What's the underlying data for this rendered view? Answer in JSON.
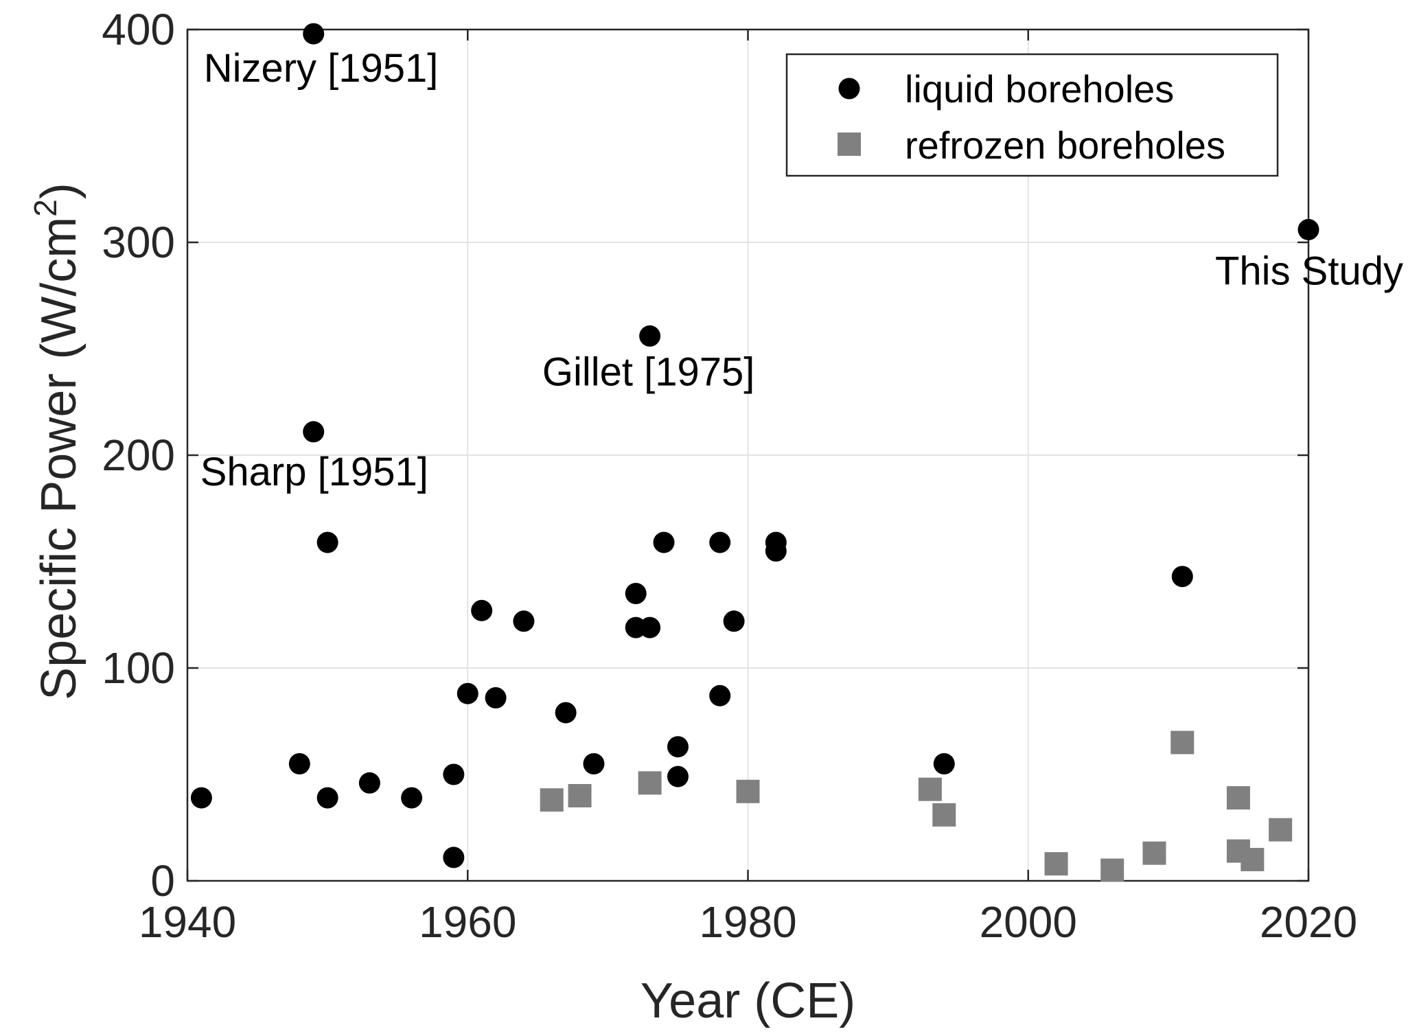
{
  "chart_data": {
    "type": "scatter",
    "title": "",
    "xlabel": "Year (CE)",
    "ylabel_main": "Specific Power (W/cm",
    "ylabel_sup": "2",
    "ylabel_close": ")",
    "xlim": [
      1940,
      2020
    ],
    "ylim": [
      0,
      400
    ],
    "xticks": [
      1940,
      1960,
      1980,
      2000,
      2020
    ],
    "yticks": [
      0,
      100,
      200,
      300,
      400
    ],
    "grid": true,
    "legend_position": "top-right",
    "series": [
      {
        "name": "liquid boreholes",
        "marker": "circle",
        "color": "#000000",
        "points": [
          [
            1941,
            39
          ],
          [
            1948,
            55
          ],
          [
            1949,
            398
          ],
          [
            1949,
            211
          ],
          [
            1950,
            159
          ],
          [
            1950,
            39
          ],
          [
            1953,
            46
          ],
          [
            1956,
            39
          ],
          [
            1959,
            50
          ],
          [
            1959,
            11
          ],
          [
            1960,
            88
          ],
          [
            1961,
            127
          ],
          [
            1962,
            86
          ],
          [
            1964,
            122
          ],
          [
            1967,
            79
          ],
          [
            1969,
            55
          ],
          [
            1972,
            135
          ],
          [
            1972,
            119
          ],
          [
            1973,
            119
          ],
          [
            1973,
            256
          ],
          [
            1974,
            159
          ],
          [
            1975,
            63
          ],
          [
            1975,
            49
          ],
          [
            1978,
            159
          ],
          [
            1978,
            87
          ],
          [
            1979,
            122
          ],
          [
            1982,
            159
          ],
          [
            1982,
            155
          ],
          [
            1994,
            55
          ],
          [
            2011,
            143
          ],
          [
            2020,
            306
          ]
        ]
      },
      {
        "name": "refrozen boreholes",
        "marker": "square",
        "color": "#808080",
        "points": [
          [
            1966,
            38
          ],
          [
            1968,
            40
          ],
          [
            1973,
            46
          ],
          [
            1980,
            42
          ],
          [
            1993,
            43
          ],
          [
            1994,
            31
          ],
          [
            2002,
            8
          ],
          [
            2006,
            5
          ],
          [
            2009,
            13
          ],
          [
            2011,
            65
          ],
          [
            2015,
            39
          ],
          [
            2015,
            14
          ],
          [
            2016,
            10
          ],
          [
            2018,
            24
          ]
        ]
      }
    ],
    "annotations": [
      {
        "text": "Nizery [1951]",
        "x": 1949,
        "y": 398
      },
      {
        "text": "Sharp [1951]",
        "x": 1949,
        "y": 211
      },
      {
        "text": "Gillet [1975]",
        "x": 1973,
        "y": 256
      },
      {
        "text": "This Study",
        "x": 2020,
        "y": 306
      }
    ]
  }
}
